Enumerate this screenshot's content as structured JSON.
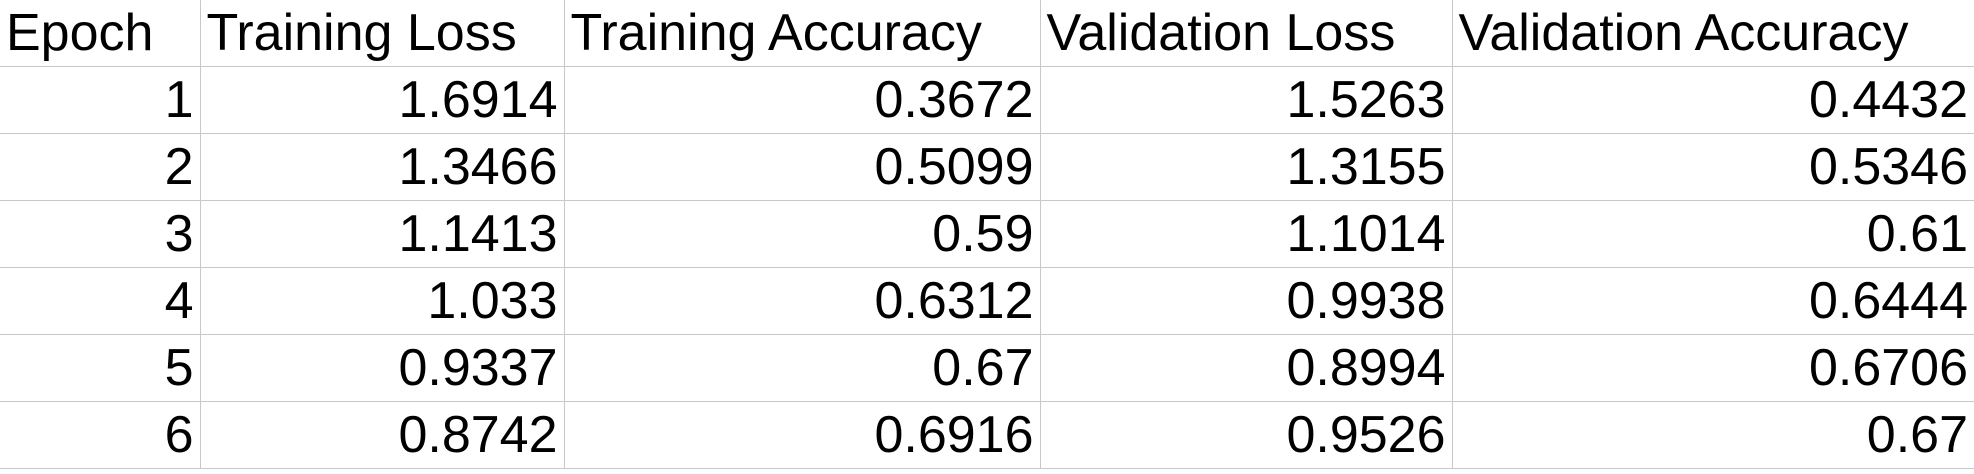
{
  "table": {
    "headers": [
      "Epoch",
      "Training Loss",
      "Training Accuracy",
      "Validation Loss",
      "Validation Accuracy"
    ],
    "rows": [
      [
        "1",
        "1.6914",
        "0.3672",
        "1.5263",
        "0.4432"
      ],
      [
        "2",
        "1.3466",
        "0.5099",
        "1.3155",
        "0.5346"
      ],
      [
        "3",
        "1.1413",
        "0.59",
        "1.1014",
        "0.61"
      ],
      [
        "4",
        "1.033",
        "0.6312",
        "0.9938",
        "0.6444"
      ],
      [
        "5",
        "0.9337",
        "0.67",
        "0.8994",
        "0.6706"
      ],
      [
        "6",
        "0.8742",
        "0.6916",
        "0.9526",
        "0.67"
      ]
    ]
  }
}
